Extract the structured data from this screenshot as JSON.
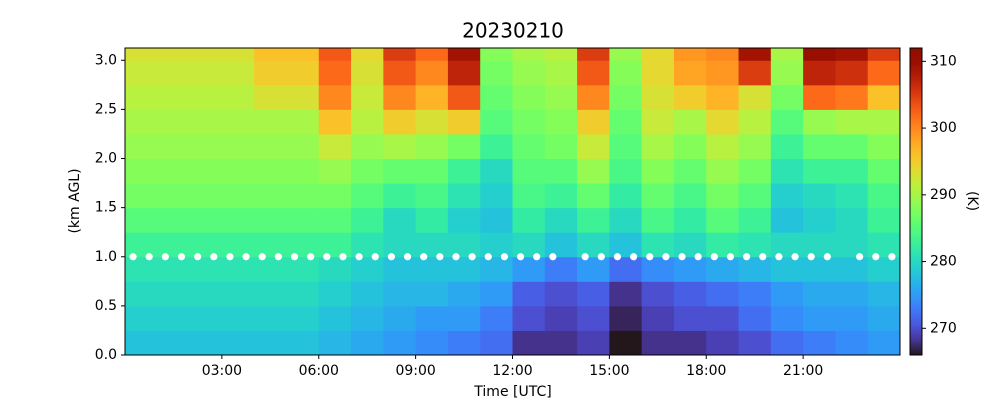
{
  "chart_data": {
    "type": "heatmap",
    "title": "20230210",
    "xlabel": "Time [UTC]",
    "ylabel": "(km AGL)",
    "colorbar_label": "(K)",
    "colormap": "turbo",
    "x_edges": [
      0,
      1,
      2,
      3,
      4,
      5,
      6,
      7,
      8,
      9,
      10,
      11,
      12,
      13,
      14,
      15,
      16,
      17,
      18,
      19,
      20,
      21,
      22,
      23,
      24
    ],
    "y_edges": [
      0,
      0.25,
      0.5,
      0.75,
      1,
      1.25,
      1.5,
      1.75,
      2,
      2.25,
      2.5,
      2.75,
      3,
      3.125
    ],
    "z": [
      [
        278,
        278,
        278,
        278,
        278,
        278,
        277,
        276,
        275,
        274,
        273,
        272,
        268,
        268,
        269,
        266,
        268,
        268,
        269,
        270,
        272,
        273,
        274,
        275
      ],
      [
        279,
        279,
        279,
        279,
        279,
        279,
        278,
        277,
        276,
        275,
        275,
        273,
        270,
        269,
        270,
        267,
        269,
        270,
        270,
        272,
        274,
        275,
        275,
        276
      ],
      [
        280,
        280,
        280,
        280,
        280,
        280,
        279,
        278,
        277,
        277,
        276,
        275,
        271,
        270,
        271,
        268,
        270,
        271,
        272,
        273,
        275,
        276,
        276,
        277
      ],
      [
        281,
        281,
        281,
        281,
        281,
        281,
        280,
        279,
        278,
        278,
        278,
        277,
        275,
        273,
        275,
        272,
        274,
        275,
        276,
        277,
        278,
        278,
        278,
        279
      ],
      [
        283,
        283,
        283,
        283,
        283,
        283,
        283,
        281,
        280,
        280,
        280,
        279,
        280,
        278,
        280,
        278,
        281,
        280,
        282,
        281,
        280,
        280,
        280,
        281
      ],
      [
        285,
        285,
        285,
        285,
        285,
        285,
        285,
        283,
        280,
        282,
        279,
        278,
        282,
        280,
        283,
        280,
        284,
        282,
        285,
        283,
        278,
        279,
        280,
        283
      ],
      [
        287,
        287,
        287,
        287,
        287,
        287,
        287,
        285,
        283,
        284,
        281,
        279,
        284,
        283,
        286,
        282,
        286,
        284,
        287,
        285,
        279,
        280,
        281,
        284
      ],
      [
        288,
        288,
        288,
        288,
        288,
        288,
        289,
        287,
        286,
        286,
        283,
        280,
        285,
        285,
        289,
        284,
        288,
        286,
        289,
        287,
        281,
        283,
        283,
        286
      ],
      [
        289,
        289,
        289,
        289,
        289,
        289,
        292,
        289,
        290,
        289,
        287,
        283,
        286,
        287,
        292,
        285,
        290,
        288,
        291,
        289,
        283,
        286,
        286,
        288
      ],
      [
        290,
        290,
        290,
        290,
        290,
        290,
        296,
        291,
        295,
        293,
        295,
        285,
        287,
        288,
        295,
        286,
        292,
        290,
        294,
        291,
        285,
        289,
        290,
        290
      ],
      [
        291,
        291,
        291,
        291,
        293,
        293,
        300,
        292,
        300,
        297,
        303,
        286,
        288,
        289,
        300,
        287,
        293,
        295,
        297,
        293,
        287,
        302,
        301,
        296
      ],
      [
        292,
        292,
        292,
        292,
        295,
        295,
        302,
        293,
        303,
        300,
        307,
        287,
        289,
        290,
        303,
        288,
        294,
        298,
        299,
        305,
        289,
        307,
        306,
        302
      ],
      [
        293,
        293,
        293,
        293,
        296,
        296,
        303,
        294,
        305,
        302,
        309,
        288,
        290,
        291,
        305,
        289,
        294,
        299,
        300,
        309,
        290,
        310,
        309,
        305
      ]
    ],
    "markers": {
      "color": "#ffffff",
      "x": [
        0.25,
        0.75,
        1.25,
        1.75,
        2.25,
        2.75,
        3.25,
        3.75,
        4.25,
        4.75,
        5.25,
        5.75,
        6.25,
        6.75,
        7.25,
        7.75,
        8.25,
        8.75,
        9.25,
        9.75,
        10.25,
        10.75,
        11.25,
        11.75,
        12.25,
        12.75,
        13.25,
        13.75,
        14.25,
        14.75,
        15.25,
        15.75,
        16.25,
        16.75,
        17.25,
        17.75,
        18.25,
        18.75,
        19.25,
        19.75,
        20.25,
        20.75,
        21.25,
        21.75,
        22.25,
        22.75,
        23.25,
        23.75
      ],
      "y": [
        1,
        1,
        1,
        1,
        1,
        1,
        1,
        1,
        1,
        1,
        1,
        1,
        1,
        1,
        1,
        1,
        1,
        1,
        1,
        1,
        1,
        1,
        1,
        1,
        1,
        1,
        1,
        null,
        1,
        1,
        1,
        1,
        1,
        1,
        1,
        1,
        1,
        1,
        1,
        1,
        1,
        1,
        1,
        1,
        null,
        1,
        1,
        1
      ]
    },
    "xlim": [
      0,
      24
    ],
    "xticks": [
      {
        "value": 3,
        "label": "03:00"
      },
      {
        "value": 6,
        "label": "06:00"
      },
      {
        "value": 9,
        "label": "09:00"
      },
      {
        "value": 12,
        "label": "12:00"
      },
      {
        "value": 15,
        "label": "15:00"
      },
      {
        "value": 18,
        "label": "18:00"
      },
      {
        "value": 21,
        "label": "21:00"
      }
    ],
    "ylim": [
      0,
      3.125
    ],
    "yticks": [
      {
        "value": 0,
        "label": "0.0"
      },
      0.5,
      {
        "value": 1,
        "label": "1.0"
      },
      1.5,
      {
        "value": 2,
        "label": "2.0"
      },
      2.5,
      {
        "value": 3,
        "label": "3.0"
      }
    ],
    "zlim": [
      266,
      312
    ],
    "zticks": [
      270,
      280,
      290,
      300,
      310
    ]
  }
}
